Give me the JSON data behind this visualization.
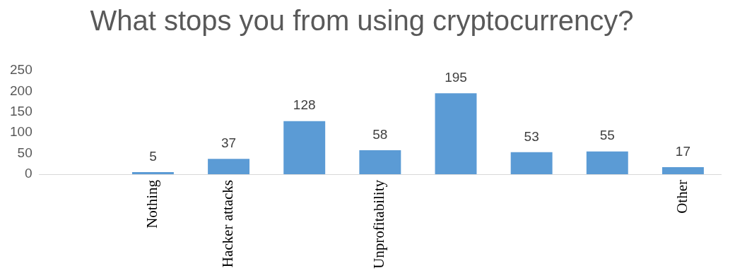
{
  "chart_data": {
    "type": "bar",
    "title": "What stops you from using cryptocurrency?",
    "categories": [
      null,
      "Nothing",
      "Hacker attacks",
      null,
      "Unprofitability",
      null,
      null,
      null,
      "Other"
    ],
    "values": [
      null,
      5,
      37,
      128,
      58,
      195,
      53,
      55,
      17
    ],
    "color": "#5b9bd5",
    "ylim": [
      0,
      250
    ],
    "yticks": [
      0,
      50,
      100,
      150,
      200,
      250
    ],
    "grid": false,
    "data_labels": true
  }
}
